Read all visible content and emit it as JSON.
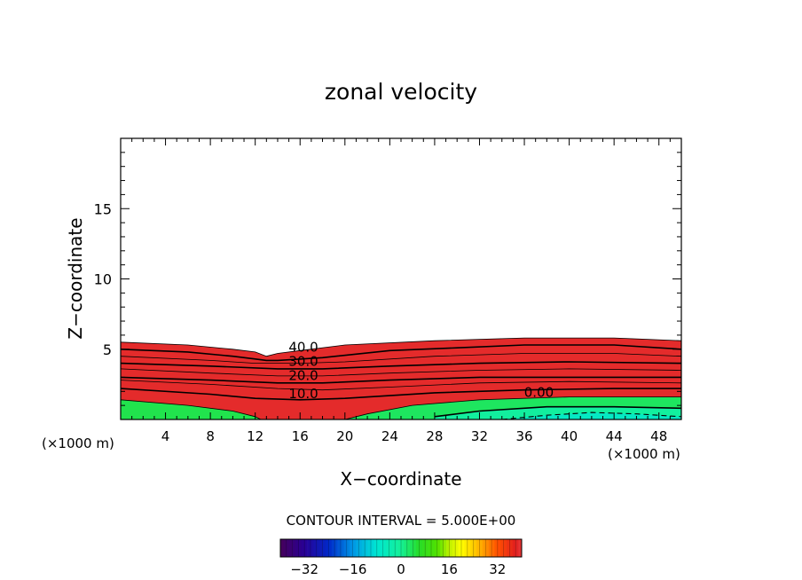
{
  "chart_data": {
    "type": "heatmap",
    "title": "zonal velocity",
    "xlabel": "X−coordinate",
    "ylabel": "Z−coordinate",
    "x_unit_left": "(×1000 m)",
    "x_unit_right": "(×1000 m)",
    "xlim": [
      0,
      50
    ],
    "ylim": [
      0,
      20
    ],
    "xticks": [
      4,
      8,
      12,
      16,
      20,
      24,
      28,
      32,
      36,
      40,
      44,
      48
    ],
    "yticks": [
      5,
      10,
      15
    ],
    "contour_interval_text": "CONTOUR INTERVAL = 5.000E+00",
    "contour_labels": [
      {
        "text": "40.0",
        "x": 16.3,
        "z": 5.2
      },
      {
        "text": "30.0",
        "x": 16.3,
        "z": 4.2
      },
      {
        "text": "20.0",
        "x": 16.3,
        "z": 3.2
      },
      {
        "text": "10.0",
        "x": 16.3,
        "z": 1.9
      },
      {
        "text": "0.00",
        "x": 37.3,
        "z": 2.0
      }
    ],
    "contour_lines": [
      {
        "level": 45,
        "points": [
          [
            0,
            5.5
          ],
          [
            6,
            5.3
          ],
          [
            10,
            5.0
          ],
          [
            12,
            4.8
          ],
          [
            13,
            4.5
          ],
          [
            14,
            4.7
          ],
          [
            16,
            4.9
          ],
          [
            20,
            5.3
          ],
          [
            28,
            5.6
          ],
          [
            36,
            5.8
          ],
          [
            44,
            5.8
          ],
          [
            50,
            5.6
          ]
        ]
      },
      {
        "level": 40,
        "points": [
          [
            0,
            5.0
          ],
          [
            6,
            4.8
          ],
          [
            10,
            4.5
          ],
          [
            12,
            4.3
          ],
          [
            13,
            4.2
          ],
          [
            14,
            4.2
          ],
          [
            18,
            4.4
          ],
          [
            24,
            4.9
          ],
          [
            30,
            5.1
          ],
          [
            36,
            5.3
          ],
          [
            44,
            5.3
          ],
          [
            50,
            5.0
          ]
        ]
      },
      {
        "level": 35,
        "points": [
          [
            0,
            4.5
          ],
          [
            8,
            4.2
          ],
          [
            12,
            4.0
          ],
          [
            16,
            4.0
          ],
          [
            20,
            4.1
          ],
          [
            28,
            4.5
          ],
          [
            36,
            4.7
          ],
          [
            44,
            4.7
          ],
          [
            50,
            4.5
          ]
        ]
      },
      {
        "level": 30,
        "points": [
          [
            0,
            4.0
          ],
          [
            8,
            3.8
          ],
          [
            14,
            3.6
          ],
          [
            18,
            3.6
          ],
          [
            24,
            3.8
          ],
          [
            32,
            4.0
          ],
          [
            40,
            4.1
          ],
          [
            50,
            4.0
          ]
        ]
      },
      {
        "level": 25,
        "points": [
          [
            0,
            3.6
          ],
          [
            8,
            3.3
          ],
          [
            14,
            3.1
          ],
          [
            18,
            3.1
          ],
          [
            24,
            3.3
          ],
          [
            32,
            3.5
          ],
          [
            40,
            3.6
          ],
          [
            50,
            3.5
          ]
        ]
      },
      {
        "level": 20,
        "points": [
          [
            0,
            3.0
          ],
          [
            8,
            2.8
          ],
          [
            14,
            2.6
          ],
          [
            18,
            2.6
          ],
          [
            24,
            2.8
          ],
          [
            32,
            3.0
          ],
          [
            40,
            3.0
          ],
          [
            50,
            3.0
          ]
        ]
      },
      {
        "level": 15,
        "points": [
          [
            0,
            2.8
          ],
          [
            8,
            2.5
          ],
          [
            14,
            2.2
          ],
          [
            18,
            2.1
          ],
          [
            24,
            2.3
          ],
          [
            32,
            2.6
          ],
          [
            40,
            2.7
          ],
          [
            50,
            2.6
          ]
        ]
      },
      {
        "level": 10,
        "points": [
          [
            0,
            2.2
          ],
          [
            8,
            1.8
          ],
          [
            12,
            1.5
          ],
          [
            16,
            1.4
          ],
          [
            20,
            1.5
          ],
          [
            28,
            1.9
          ],
          [
            36,
            2.1
          ],
          [
            44,
            2.2
          ],
          [
            50,
            2.2
          ]
        ]
      },
      {
        "level": 5,
        "points": [
          [
            0,
            1.4
          ],
          [
            6,
            1.0
          ],
          [
            10,
            0.6
          ],
          [
            12,
            0.2
          ],
          [
            12.5,
            0
          ]
        ]
      },
      {
        "level": 5,
        "points": [
          [
            20,
            0
          ],
          [
            22,
            0.4
          ],
          [
            26,
            1.0
          ],
          [
            32,
            1.4
          ],
          [
            40,
            1.6
          ],
          [
            50,
            1.6
          ]
        ]
      },
      {
        "level": 0,
        "points": [
          [
            28,
            0.2
          ],
          [
            32,
            0.6
          ],
          [
            38,
            0.9
          ],
          [
            44,
            0.9
          ],
          [
            50,
            0.8
          ]
        ]
      },
      {
        "level": -5,
        "points": [
          [
            34,
            0
          ],
          [
            38,
            0.3
          ],
          [
            42,
            0.5
          ],
          [
            46,
            0.4
          ],
          [
            50,
            0.2
          ]
        ]
      }
    ],
    "colorbar": {
      "min": -40,
      "max": 40,
      "ticks": [
        -32,
        -16,
        0,
        16,
        32
      ],
      "tick_labels": [
        "−32",
        "−16",
        "0",
        "16",
        "32"
      ]
    }
  }
}
